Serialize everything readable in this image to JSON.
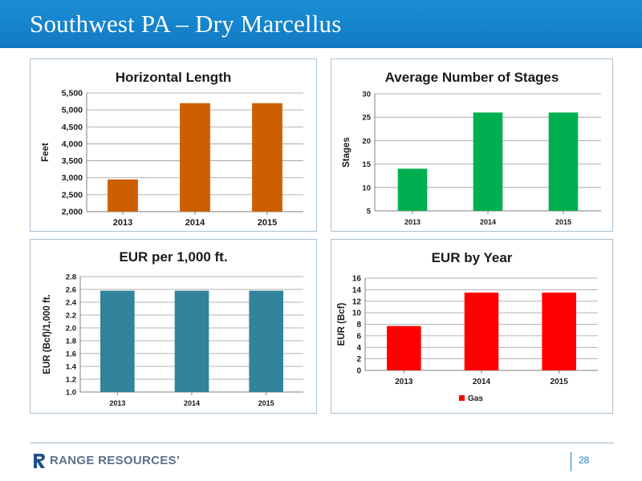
{
  "header": {
    "title": "Southwest PA – Dry Marcellus"
  },
  "footer": {
    "brand": "RANGE RESOURCES’",
    "page_number": "28"
  },
  "colors": {
    "header": "#1a86ce",
    "orange": "#cc6000",
    "green": "#00b050",
    "teal": "#31849b",
    "red": "#ff0000",
    "brand": "#1b4f8a"
  },
  "chart_data": [
    {
      "id": "horizontal-length",
      "type": "bar",
      "title": "Horizontal Length",
      "ylabel": "Feet",
      "xlabel": "",
      "categories": [
        "2013",
        "2014",
        "2015"
      ],
      "values": [
        2950,
        5200,
        5200
      ],
      "ylim": [
        2000,
        5500
      ],
      "yticks": [
        "2,000",
        "2,500",
        "3,000",
        "3,500",
        "4,000",
        "4,500",
        "5,000",
        "5,500"
      ],
      "grid": true,
      "color": "#cc6000",
      "legend": null
    },
    {
      "id": "average-stages",
      "type": "bar",
      "title": "Average Number of Stages",
      "ylabel": "Stages",
      "xlabel": "",
      "categories": [
        "2013",
        "2014",
        "2015"
      ],
      "values": [
        14,
        26,
        26
      ],
      "ylim": [
        5,
        30
      ],
      "yticks": [
        "5",
        "10",
        "15",
        "20",
        "25",
        "30"
      ],
      "grid": true,
      "color": "#00b050",
      "legend": null
    },
    {
      "id": "eur-per-1000",
      "type": "bar",
      "title": "EUR per 1,000 ft.",
      "ylabel": "EUR (Bcf)/1,000 ft.",
      "xlabel": "",
      "categories": [
        "2013",
        "2014",
        "2015"
      ],
      "values": [
        2.58,
        2.58,
        2.58
      ],
      "ylim": [
        1.0,
        2.8
      ],
      "yticks": [
        "1.0",
        "1.2",
        "1.4",
        "1.6",
        "1.8",
        "2.0",
        "2.2",
        "2.4",
        "2.6",
        "2.8"
      ],
      "grid": true,
      "color": "#31849b",
      "legend": null
    },
    {
      "id": "eur-by-year",
      "type": "bar",
      "title": "EUR by Year",
      "ylabel": "EUR (Bcf)",
      "xlabel": "",
      "categories": [
        "2013",
        "2014",
        "2015"
      ],
      "series": [
        {
          "name": "Gas",
          "values": [
            7.7,
            13.5,
            13.5
          ]
        }
      ],
      "values": [
        7.7,
        13.5,
        13.5
      ],
      "ylim": [
        0,
        16
      ],
      "yticks": [
        "0",
        "2",
        "4",
        "6",
        "8",
        "10",
        "12",
        "14",
        "16"
      ],
      "grid": true,
      "color": "#ff0000",
      "legend": "bottom"
    }
  ]
}
